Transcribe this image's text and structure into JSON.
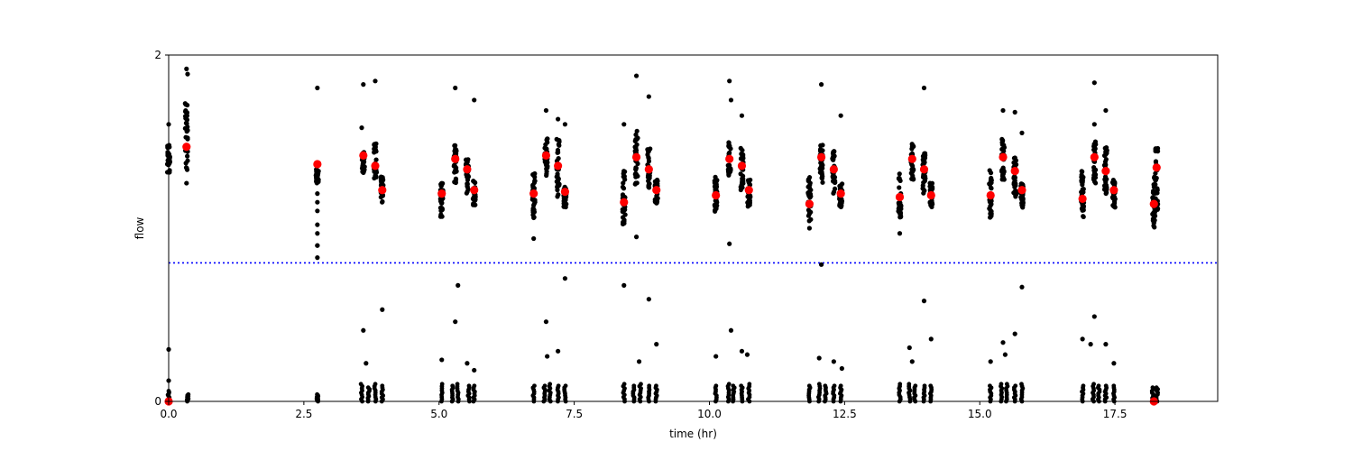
{
  "chart_data": {
    "type": "scatter",
    "title": "",
    "xlabel": "time (hr)",
    "ylabel": "flow",
    "xlim": [
      0,
      19.4
    ],
    "ylim": [
      0,
      2
    ],
    "xticks": [
      0,
      2.5,
      5,
      7.5,
      10,
      12.5,
      15,
      17.5
    ],
    "xtick_labels": [
      "0.0",
      "2.5",
      "5.0",
      "7.5",
      "10.0",
      "12.5",
      "15.0",
      "17.5"
    ],
    "yticks": [
      0,
      2
    ],
    "ytick_labels": [
      "0",
      "2"
    ],
    "grid": false,
    "legend": "none",
    "threshold": {
      "y": 0.8,
      "color": "#0000ff",
      "style": "dotted"
    },
    "series": [
      {
        "color": "#000000",
        "clusters": [
          {
            "x": 0.0,
            "ymin": 1.32,
            "ymax": 1.48
          },
          {
            "x": 0.33,
            "ymin": 1.3,
            "ymax": 1.72
          },
          {
            "x": 2.75,
            "ymin": 1.26,
            "ymax": 1.34
          },
          {
            "x": 3.6,
            "ymin": 1.3,
            "ymax": 1.44
          },
          {
            "x": 3.82,
            "ymin": 1.25,
            "ymax": 1.5
          },
          {
            "x": 3.95,
            "ymin": 1.15,
            "ymax": 1.3
          },
          {
            "x": 5.05,
            "ymin": 1.06,
            "ymax": 1.26
          },
          {
            "x": 5.3,
            "ymin": 1.26,
            "ymax": 1.48
          },
          {
            "x": 5.52,
            "ymin": 1.2,
            "ymax": 1.4
          },
          {
            "x": 5.65,
            "ymin": 1.12,
            "ymax": 1.28
          },
          {
            "x": 6.75,
            "ymin": 1.06,
            "ymax": 1.34
          },
          {
            "x": 6.98,
            "ymin": 1.3,
            "ymax": 1.52
          },
          {
            "x": 7.2,
            "ymin": 1.18,
            "ymax": 1.52
          },
          {
            "x": 7.33,
            "ymin": 1.12,
            "ymax": 1.24
          },
          {
            "x": 8.42,
            "ymin": 1.02,
            "ymax": 1.34
          },
          {
            "x": 8.65,
            "ymin": 1.24,
            "ymax": 1.58
          },
          {
            "x": 8.88,
            "ymin": 1.22,
            "ymax": 1.46
          },
          {
            "x": 9.02,
            "ymin": 1.14,
            "ymax": 1.28
          },
          {
            "x": 10.12,
            "ymin": 1.06,
            "ymax": 1.3
          },
          {
            "x": 10.37,
            "ymin": 1.3,
            "ymax": 1.5
          },
          {
            "x": 10.6,
            "ymin": 1.22,
            "ymax": 1.48
          },
          {
            "x": 10.73,
            "ymin": 1.12,
            "ymax": 1.28
          },
          {
            "x": 11.85,
            "ymin": 1.04,
            "ymax": 1.3
          },
          {
            "x": 12.07,
            "ymin": 1.26,
            "ymax": 1.48
          },
          {
            "x": 12.3,
            "ymin": 1.2,
            "ymax": 1.46
          },
          {
            "x": 12.43,
            "ymin": 1.12,
            "ymax": 1.26
          },
          {
            "x": 13.52,
            "ymin": 1.06,
            "ymax": 1.34
          },
          {
            "x": 13.75,
            "ymin": 1.26,
            "ymax": 1.5
          },
          {
            "x": 13.97,
            "ymin": 1.2,
            "ymax": 1.44
          },
          {
            "x": 14.1,
            "ymin": 1.12,
            "ymax": 1.26
          },
          {
            "x": 15.2,
            "ymin": 1.06,
            "ymax": 1.34
          },
          {
            "x": 15.43,
            "ymin": 1.28,
            "ymax": 1.52
          },
          {
            "x": 15.65,
            "ymin": 1.18,
            "ymax": 1.42
          },
          {
            "x": 15.78,
            "ymin": 1.12,
            "ymax": 1.26
          },
          {
            "x": 16.9,
            "ymin": 1.06,
            "ymax": 1.34
          },
          {
            "x": 17.12,
            "ymin": 1.26,
            "ymax": 1.5
          },
          {
            "x": 17.33,
            "ymin": 1.2,
            "ymax": 1.48
          },
          {
            "x": 17.48,
            "ymin": 1.12,
            "ymax": 1.28
          },
          {
            "x": 18.22,
            "ymin": 1.0,
            "ymax": 1.32
          },
          {
            "x": 18.27,
            "ymin": 1.1,
            "ymax": 1.48
          }
        ],
        "outliers": [
          {
            "x": 0.0,
            "y": 1.6
          },
          {
            "x": 0.33,
            "y": 1.92
          },
          {
            "x": 0.35,
            "y": 1.89
          },
          {
            "x": 0.33,
            "y": 1.26
          },
          {
            "x": 0.0,
            "y": 0.3
          },
          {
            "x": 0.0,
            "y": 0.12
          },
          {
            "x": 2.75,
            "y": 1.81
          },
          {
            "x": 2.75,
            "y": 1.2
          },
          {
            "x": 2.75,
            "y": 1.15
          },
          {
            "x": 2.75,
            "y": 1.1
          },
          {
            "x": 2.75,
            "y": 1.02
          },
          {
            "x": 2.75,
            "y": 0.97
          },
          {
            "x": 2.75,
            "y": 0.9
          },
          {
            "x": 2.75,
            "y": 0.83
          },
          {
            "x": 2.75,
            "y": 0.9
          },
          {
            "x": 3.6,
            "y": 1.83
          },
          {
            "x": 3.82,
            "y": 1.85
          },
          {
            "x": 3.57,
            "y": 1.58
          },
          {
            "x": 3.6,
            "y": 0.41
          },
          {
            "x": 3.65,
            "y": 0.22
          },
          {
            "x": 3.95,
            "y": 0.53
          },
          {
            "x": 5.3,
            "y": 1.81
          },
          {
            "x": 5.65,
            "y": 1.74
          },
          {
            "x": 5.35,
            "y": 0.67
          },
          {
            "x": 5.3,
            "y": 0.46
          },
          {
            "x": 5.05,
            "y": 0.24
          },
          {
            "x": 5.52,
            "y": 0.22
          },
          {
            "x": 5.65,
            "y": 0.18
          },
          {
            "x": 6.75,
            "y": 0.94
          },
          {
            "x": 6.98,
            "y": 1.68
          },
          {
            "x": 7.2,
            "y": 1.63
          },
          {
            "x": 7.33,
            "y": 1.6
          },
          {
            "x": 7.33,
            "y": 0.71
          },
          {
            "x": 6.98,
            "y": 0.46
          },
          {
            "x": 7.2,
            "y": 0.29
          },
          {
            "x": 7.0,
            "y": 0.26
          },
          {
            "x": 8.65,
            "y": 1.88
          },
          {
            "x": 8.88,
            "y": 1.76
          },
          {
            "x": 8.65,
            "y": 0.95
          },
          {
            "x": 8.42,
            "y": 0.67
          },
          {
            "x": 8.88,
            "y": 0.59
          },
          {
            "x": 9.02,
            "y": 0.33
          },
          {
            "x": 8.7,
            "y": 0.23
          },
          {
            "x": 8.42,
            "y": 1.6
          },
          {
            "x": 10.37,
            "y": 1.85
          },
          {
            "x": 10.4,
            "y": 1.74
          },
          {
            "x": 10.6,
            "y": 1.65
          },
          {
            "x": 10.37,
            "y": 0.91
          },
          {
            "x": 10.4,
            "y": 0.41
          },
          {
            "x": 10.6,
            "y": 0.29
          },
          {
            "x": 10.7,
            "y": 0.27
          },
          {
            "x": 10.12,
            "y": 0.26
          },
          {
            "x": 12.07,
            "y": 1.83
          },
          {
            "x": 12.43,
            "y": 1.65
          },
          {
            "x": 12.07,
            "y": 0.79
          },
          {
            "x": 12.03,
            "y": 0.25
          },
          {
            "x": 12.3,
            "y": 0.23
          },
          {
            "x": 12.45,
            "y": 0.19
          },
          {
            "x": 11.85,
            "y": 1.0
          },
          {
            "x": 13.97,
            "y": 1.81
          },
          {
            "x": 13.52,
            "y": 0.97
          },
          {
            "x": 13.97,
            "y": 0.58
          },
          {
            "x": 14.1,
            "y": 0.36
          },
          {
            "x": 13.7,
            "y": 0.31
          },
          {
            "x": 13.75,
            "y": 0.23
          },
          {
            "x": 15.43,
            "y": 1.68
          },
          {
            "x": 15.65,
            "y": 1.67
          },
          {
            "x": 15.78,
            "y": 1.55
          },
          {
            "x": 15.78,
            "y": 0.66
          },
          {
            "x": 15.65,
            "y": 0.39
          },
          {
            "x": 15.43,
            "y": 0.34
          },
          {
            "x": 15.2,
            "y": 0.23
          },
          {
            "x": 15.47,
            "y": 0.27
          },
          {
            "x": 17.12,
            "y": 1.84
          },
          {
            "x": 17.33,
            "y": 1.68
          },
          {
            "x": 17.12,
            "y": 1.6
          },
          {
            "x": 16.9,
            "y": 0.36
          },
          {
            "x": 17.12,
            "y": 0.49
          },
          {
            "x": 17.33,
            "y": 0.33
          },
          {
            "x": 17.05,
            "y": 0.33
          },
          {
            "x": 17.48,
            "y": 0.22
          },
          {
            "x": 18.22,
            "y": 1.03
          }
        ],
        "low_groups": [
          {
            "x": 0.0,
            "ymax": 0.06
          },
          {
            "x": 0.35,
            "ymax": 0.04
          },
          {
            "x": 2.75,
            "ymax": 0.04
          },
          {
            "x": 3.57,
            "ymax": 0.1
          },
          {
            "x": 3.7,
            "ymax": 0.08
          },
          {
            "x": 3.82,
            "ymax": 0.1
          },
          {
            "x": 3.95,
            "ymax": 0.09
          },
          {
            "x": 5.05,
            "ymax": 0.1
          },
          {
            "x": 5.25,
            "ymax": 0.09
          },
          {
            "x": 5.35,
            "ymax": 0.1
          },
          {
            "x": 5.55,
            "ymax": 0.09
          },
          {
            "x": 5.65,
            "ymax": 0.09
          },
          {
            "x": 6.75,
            "ymax": 0.09
          },
          {
            "x": 6.95,
            "ymax": 0.09
          },
          {
            "x": 7.05,
            "ymax": 0.1
          },
          {
            "x": 7.2,
            "ymax": 0.09
          },
          {
            "x": 7.33,
            "ymax": 0.09
          },
          {
            "x": 8.42,
            "ymax": 0.1
          },
          {
            "x": 8.6,
            "ymax": 0.09
          },
          {
            "x": 8.72,
            "ymax": 0.1
          },
          {
            "x": 8.88,
            "ymax": 0.09
          },
          {
            "x": 9.02,
            "ymax": 0.09
          },
          {
            "x": 10.12,
            "ymax": 0.09
          },
          {
            "x": 10.35,
            "ymax": 0.1
          },
          {
            "x": 10.45,
            "ymax": 0.09
          },
          {
            "x": 10.6,
            "ymax": 0.09
          },
          {
            "x": 10.73,
            "ymax": 0.1
          },
          {
            "x": 11.85,
            "ymax": 0.09
          },
          {
            "x": 12.03,
            "ymax": 0.1
          },
          {
            "x": 12.15,
            "ymax": 0.09
          },
          {
            "x": 12.3,
            "ymax": 0.09
          },
          {
            "x": 12.43,
            "ymax": 0.09
          },
          {
            "x": 13.52,
            "ymax": 0.1
          },
          {
            "x": 13.7,
            "ymax": 0.1
          },
          {
            "x": 13.8,
            "ymax": 0.09
          },
          {
            "x": 13.97,
            "ymax": 0.09
          },
          {
            "x": 14.1,
            "ymax": 0.09
          },
          {
            "x": 15.2,
            "ymax": 0.09
          },
          {
            "x": 15.4,
            "ymax": 0.1
          },
          {
            "x": 15.5,
            "ymax": 0.1
          },
          {
            "x": 15.65,
            "ymax": 0.09
          },
          {
            "x": 15.78,
            "ymax": 0.1
          },
          {
            "x": 16.9,
            "ymax": 0.09
          },
          {
            "x": 17.1,
            "ymax": 0.1
          },
          {
            "x": 17.2,
            "ymax": 0.09
          },
          {
            "x": 17.33,
            "ymax": 0.09
          },
          {
            "x": 17.48,
            "ymax": 0.09
          },
          {
            "x": 18.2,
            "ymax": 0.08
          },
          {
            "x": 18.28,
            "ymax": 0.08
          }
        ]
      },
      {
        "color": "#ff0000",
        "points": [
          {
            "x": 0.0,
            "y": 0.0
          },
          {
            "x": 0.33,
            "y": 1.47
          },
          {
            "x": 2.75,
            "y": 1.37
          },
          {
            "x": 3.6,
            "y": 1.42
          },
          {
            "x": 3.82,
            "y": 1.36
          },
          {
            "x": 3.95,
            "y": 1.22
          },
          {
            "x": 5.05,
            "y": 1.2
          },
          {
            "x": 5.3,
            "y": 1.4
          },
          {
            "x": 5.52,
            "y": 1.34
          },
          {
            "x": 5.65,
            "y": 1.22
          },
          {
            "x": 6.75,
            "y": 1.2
          },
          {
            "x": 6.98,
            "y": 1.42
          },
          {
            "x": 7.2,
            "y": 1.36
          },
          {
            "x": 7.33,
            "y": 1.21
          },
          {
            "x": 8.42,
            "y": 1.15
          },
          {
            "x": 8.65,
            "y": 1.41
          },
          {
            "x": 8.88,
            "y": 1.34
          },
          {
            "x": 9.02,
            "y": 1.22
          },
          {
            "x": 10.12,
            "y": 1.19
          },
          {
            "x": 10.37,
            "y": 1.4
          },
          {
            "x": 10.6,
            "y": 1.36
          },
          {
            "x": 10.73,
            "y": 1.22
          },
          {
            "x": 11.85,
            "y": 1.14
          },
          {
            "x": 12.07,
            "y": 1.41
          },
          {
            "x": 12.3,
            "y": 1.34
          },
          {
            "x": 12.43,
            "y": 1.2
          },
          {
            "x": 13.52,
            "y": 1.18
          },
          {
            "x": 13.75,
            "y": 1.4
          },
          {
            "x": 13.97,
            "y": 1.34
          },
          {
            "x": 14.1,
            "y": 1.19
          },
          {
            "x": 15.2,
            "y": 1.19
          },
          {
            "x": 15.43,
            "y": 1.41
          },
          {
            "x": 15.65,
            "y": 1.33
          },
          {
            "x": 15.78,
            "y": 1.22
          },
          {
            "x": 16.9,
            "y": 1.17
          },
          {
            "x": 17.12,
            "y": 1.41
          },
          {
            "x": 17.33,
            "y": 1.33
          },
          {
            "x": 17.48,
            "y": 1.22
          },
          {
            "x": 18.22,
            "y": 1.14
          },
          {
            "x": 18.27,
            "y": 1.35
          },
          {
            "x": 18.22,
            "y": 0.0
          }
        ]
      }
    ]
  }
}
